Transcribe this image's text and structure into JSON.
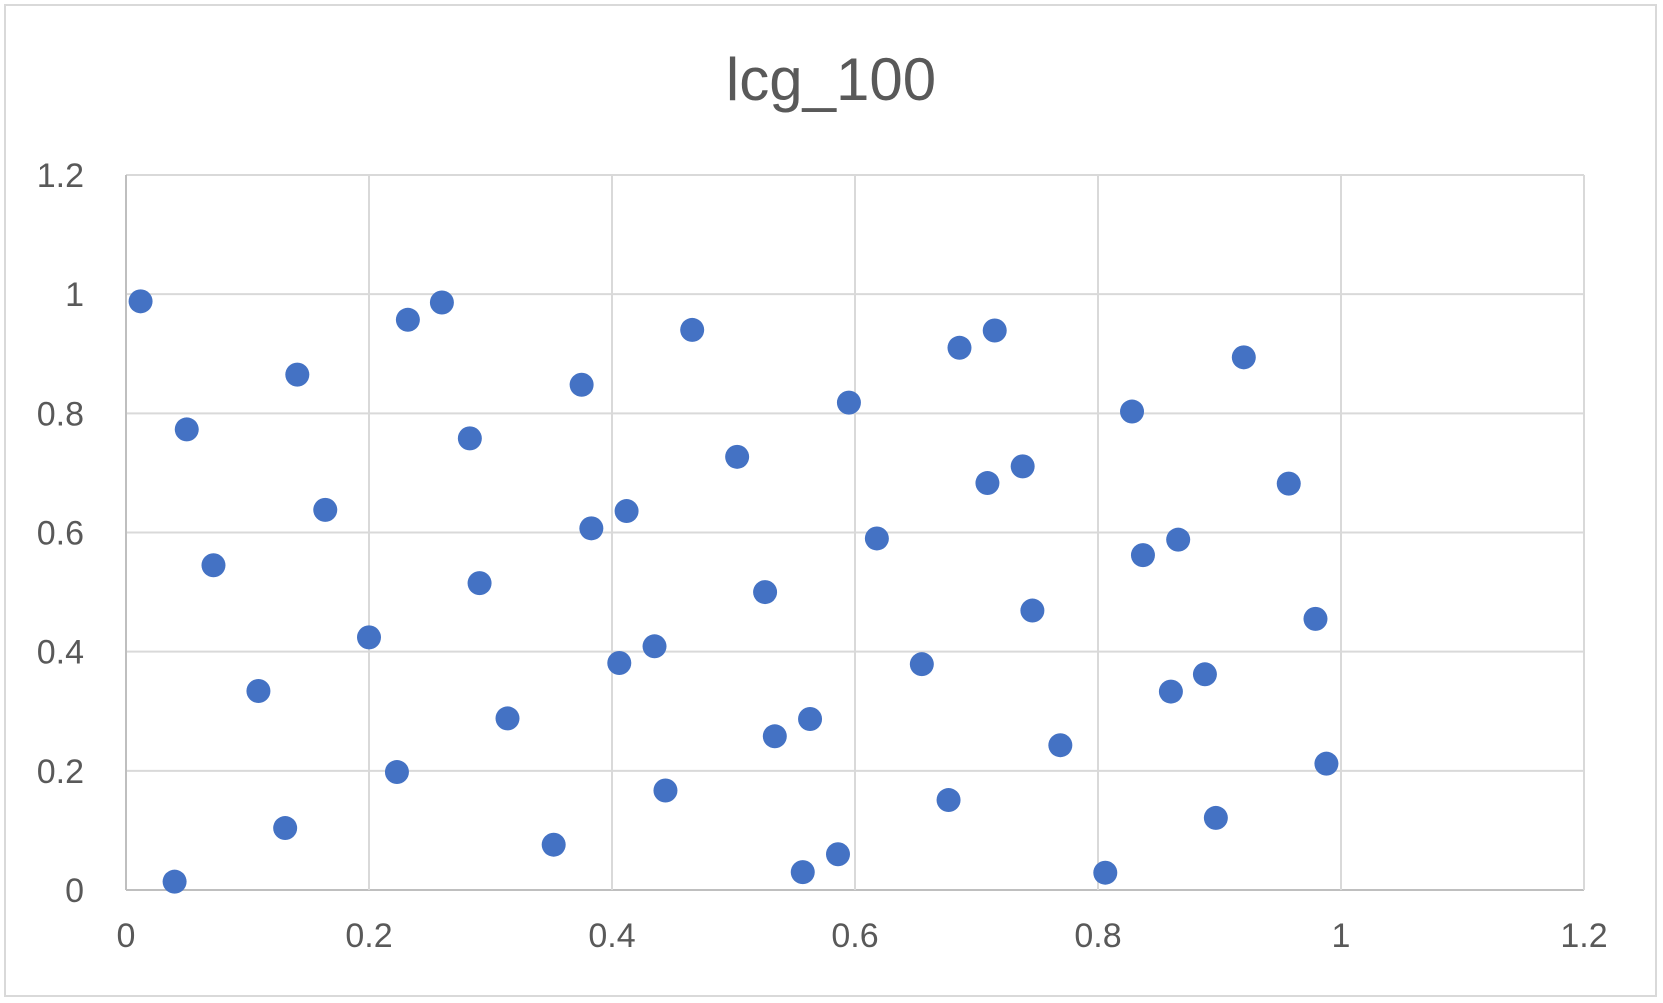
{
  "chart_data": {
    "type": "scatter",
    "title": "lcg_100",
    "xlabel": "",
    "ylabel": "",
    "xlim": [
      0,
      1.2
    ],
    "ylim": [
      0,
      1.2
    ],
    "x_ticks": [
      "0",
      "0.2",
      "0.4",
      "0.6",
      "0.8",
      "1",
      "1.2"
    ],
    "y_ticks": [
      "0",
      "0.2",
      "0.4",
      "0.6",
      "0.8",
      "1",
      "1.2"
    ],
    "grid": true,
    "legend": "none",
    "marker_color": "#4472c4",
    "series": [
      {
        "x": [
          0.012,
          0.04,
          0.05,
          0.072,
          0.109,
          0.131,
          0.141,
          0.164,
          0.2,
          0.223,
          0.232,
          0.26,
          0.283,
          0.291,
          0.314,
          0.352,
          0.375,
          0.383,
          0.406,
          0.412,
          0.435,
          0.444,
          0.466,
          0.503,
          0.526,
          0.534,
          0.557,
          0.563,
          0.586,
          0.595,
          0.618,
          0.655,
          0.677,
          0.686,
          0.709,
          0.715,
          0.738,
          0.746,
          0.769,
          0.806,
          0.828,
          0.837,
          0.86,
          0.866,
          0.888,
          0.897,
          0.92,
          0.957,
          0.979,
          0.988
        ],
        "y": [
          0.988,
          0.014,
          0.773,
          0.545,
          0.334,
          0.104,
          0.865,
          0.638,
          0.424,
          0.198,
          0.957,
          0.986,
          0.758,
          0.515,
          0.288,
          0.076,
          0.848,
          0.607,
          0.381,
          0.636,
          0.409,
          0.167,
          0.94,
          0.727,
          0.5,
          0.258,
          0.03,
          0.287,
          0.06,
          0.818,
          0.59,
          0.379,
          0.151,
          0.91,
          0.683,
          0.939,
          0.711,
          0.469,
          0.243,
          0.029,
          0.803,
          0.562,
          0.333,
          0.588,
          0.362,
          0.121,
          0.894,
          0.682,
          0.455,
          0.212
        ]
      }
    ]
  }
}
